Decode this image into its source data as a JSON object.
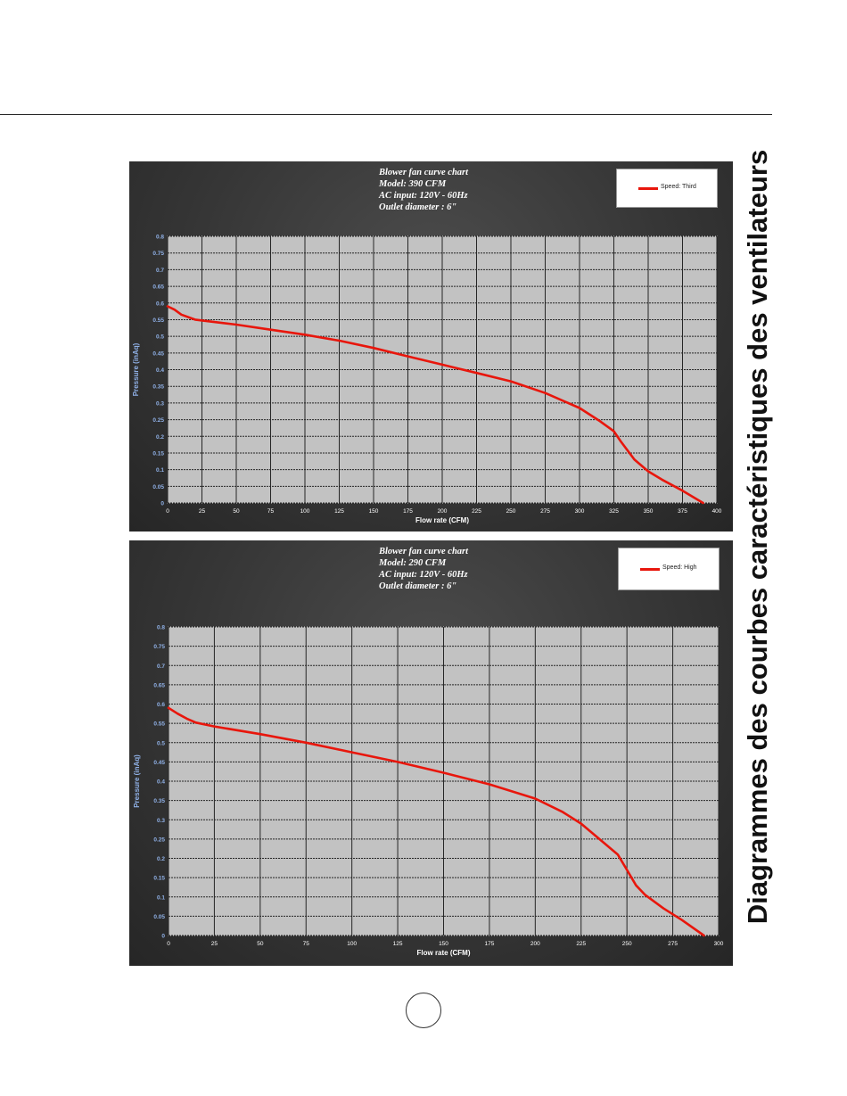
{
  "side_title": "Diagrammes des courbes caractéristiques des ventilateurs",
  "chart_data": [
    {
      "type": "line",
      "title_lines": [
        "Blower fan curve chart",
        "Model: 390 CFM",
        "AC input: 120V - 60Hz",
        "Outlet diameter : 6\""
      ],
      "xlabel": "Flow rate (CFM)",
      "ylabel": "Pressure (inAq)",
      "xlim": [
        0,
        400
      ],
      "ylim": [
        0,
        0.8
      ],
      "x_ticks": [
        0,
        25,
        50,
        75,
        100,
        125,
        150,
        175,
        200,
        225,
        250,
        275,
        300,
        325,
        350,
        375,
        400
      ],
      "x_tick_labels": [
        "0",
        "25",
        "50",
        "75",
        "100",
        "125",
        "150",
        "175",
        "200",
        "225",
        "250",
        "275",
        "300",
        "325",
        "350",
        "375",
        "400"
      ],
      "y_ticks": [
        0,
        0.05,
        0.1,
        0.15,
        0.2,
        0.25,
        0.3,
        0.35,
        0.4,
        0.45,
        0.5,
        0.55,
        0.6,
        0.65,
        0.7,
        0.75,
        0.8
      ],
      "y_tick_labels": [
        "0",
        "0.05",
        "0.1",
        "0.15",
        "0.2",
        "0.25",
        "0.3",
        "0.35",
        "0.4",
        "0.45",
        "0.5",
        "0.55",
        "0.6",
        "0.65",
        "0.7",
        "0.75",
        "0.8"
      ],
      "grid": true,
      "legend_position": "top-right",
      "series": [
        {
          "name": "Speed: Third",
          "color": "#e8160c",
          "x": [
            0,
            5,
            10,
            20,
            30,
            50,
            75,
            100,
            125,
            150,
            175,
            200,
            225,
            250,
            275,
            300,
            315,
            325,
            330,
            340,
            350,
            360,
            375,
            390
          ],
          "y": [
            0.59,
            0.58,
            0.565,
            0.55,
            0.545,
            0.535,
            0.52,
            0.505,
            0.487,
            0.465,
            0.44,
            0.415,
            0.39,
            0.365,
            0.33,
            0.285,
            0.245,
            0.215,
            0.185,
            0.13,
            0.095,
            0.07,
            0.037,
            0
          ]
        }
      ]
    },
    {
      "type": "line",
      "title_lines": [
        "Blower fan curve chart",
        "Model: 290 CFM",
        "AC input: 120V - 60Hz",
        "Outlet diameter : 6\""
      ],
      "xlabel": "Flow rate (CFM)",
      "ylabel": "Pressure (inAq)",
      "xlim": [
        0,
        300
      ],
      "ylim": [
        0,
        0.8
      ],
      "x_ticks": [
        0,
        25,
        50,
        75,
        100,
        125,
        150,
        175,
        200,
        225,
        250,
        275,
        300
      ],
      "x_tick_labels": [
        "0",
        "25",
        "50",
        "75",
        "100",
        "125",
        "150",
        "175",
        "200",
        "225",
        "250",
        "275",
        "300"
      ],
      "y_ticks": [
        0,
        0.05,
        0.1,
        0.15,
        0.2,
        0.25,
        0.3,
        0.35,
        0.4,
        0.45,
        0.5,
        0.55,
        0.6,
        0.65,
        0.7,
        0.75,
        0.8
      ],
      "y_tick_labels": [
        "0",
        "0.05",
        "0.1",
        "0.15",
        "0.2",
        "0.25",
        "0.3",
        "0.35",
        "0.4",
        "0.45",
        "0.5",
        "0.55",
        "0.6",
        "0.65",
        "0.7",
        "0.75",
        "0.8"
      ],
      "grid": true,
      "legend_position": "top-right",
      "series": [
        {
          "name": "Speed: High",
          "color": "#e8160c",
          "x": [
            0,
            5,
            10,
            15,
            25,
            50,
            75,
            100,
            125,
            150,
            175,
            200,
            215,
            225,
            235,
            245,
            250,
            255,
            260,
            270,
            280,
            292
          ],
          "y": [
            0.59,
            0.575,
            0.562,
            0.552,
            0.542,
            0.522,
            0.5,
            0.475,
            0.45,
            0.422,
            0.392,
            0.355,
            0.32,
            0.29,
            0.25,
            0.21,
            0.17,
            0.13,
            0.105,
            0.07,
            0.04,
            0
          ]
        }
      ]
    }
  ]
}
